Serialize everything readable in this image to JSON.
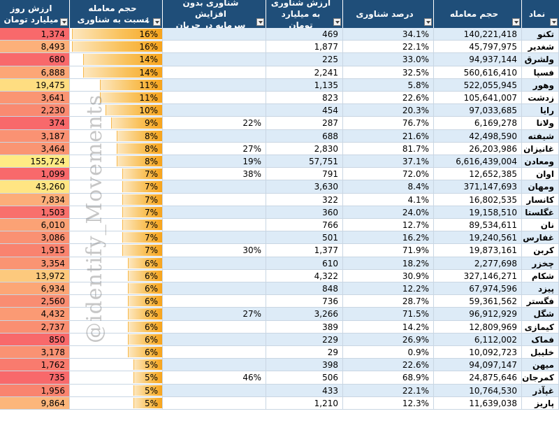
{
  "headers": {
    "symbol": "نماد",
    "volume": "حجم معامله",
    "float_pct": "درصد شناوری",
    "float_value": "ارزش شناوری\nبه میلیارد تومان",
    "float_no_capital": "شناوری بدون افزایش\nسرمایه در جریان",
    "volume_ratio": "حجم معامله\nنسبت به شناوری",
    "daily_value": "ارزش روز\nمیلیارد تومان"
  },
  "watermark": "@identify_Movements",
  "rows": [
    {
      "symbol": "تکنو",
      "volume": "140,221,418",
      "float_pct": "34.1%",
      "float_value": "469",
      "float_nc": "",
      "ratio": "16%",
      "ratio_num": 16,
      "daily": "1,374",
      "daily_color": "#f8696b"
    },
    {
      "symbol": "شغدیر",
      "volume": "45,797,975",
      "float_pct": "22.1%",
      "float_value": "1,877",
      "float_nc": "",
      "ratio": "16%",
      "ratio_num": 16,
      "daily": "8,493",
      "daily_color": "#fcb07a"
    },
    {
      "symbol": "ولشرق",
      "volume": "94,937,144",
      "float_pct": "33.0%",
      "float_value": "225",
      "float_nc": "",
      "ratio": "14%",
      "ratio_num": 14,
      "daily": "680",
      "daily_color": "#f8696b"
    },
    {
      "symbol": "فسپا",
      "volume": "560,616,410",
      "float_pct": "32.5%",
      "float_value": "2,241",
      "float_nc": "",
      "ratio": "14%",
      "ratio_num": 14,
      "daily": "6,888",
      "daily_color": "#fca676"
    },
    {
      "symbol": "وهور",
      "volume": "522,055,945",
      "float_pct": "5.8%",
      "float_value": "1,135",
      "float_nc": "",
      "ratio": "11%",
      "ratio_num": 11,
      "daily": "19,475",
      "daily_color": "#fedd81"
    },
    {
      "symbol": "زدشت",
      "volume": "105,641,007",
      "float_pct": "22.6%",
      "float_value": "823",
      "float_nc": "",
      "ratio": "11%",
      "ratio_num": 11,
      "daily": "3,641",
      "daily_color": "#fa9573"
    },
    {
      "symbol": "رایا",
      "volume": "97,033,685",
      "float_pct": "20.3%",
      "float_value": "454",
      "float_nc": "",
      "ratio": "10%",
      "ratio_num": 10,
      "daily": "2,230",
      "daily_color": "#f98a71"
    },
    {
      "symbol": "ولانا",
      "volume": "6,169,278",
      "float_pct": "76.7%",
      "float_value": "287",
      "float_nc": "22%",
      "ratio": "9%",
      "ratio_num": 9,
      "daily": "374",
      "daily_color": "#f8696b"
    },
    {
      "symbol": "شیفته",
      "volume": "42,498,590",
      "float_pct": "21.6%",
      "float_value": "688",
      "float_nc": "",
      "ratio": "8%",
      "ratio_num": 8,
      "daily": "3,187",
      "daily_color": "#fa9273"
    },
    {
      "symbol": "غانیزان",
      "volume": "26,203,986",
      "float_pct": "81.7%",
      "float_value": "2,830",
      "float_nc": "27%",
      "ratio": "8%",
      "ratio_num": 8,
      "daily": "3,464",
      "daily_color": "#fa9573"
    },
    {
      "symbol": "ومعادن",
      "volume": "6,616,439,004",
      "float_pct": "37.1%",
      "float_value": "57,751",
      "float_nc": "19%",
      "ratio": "8%",
      "ratio_num": 8,
      "daily": "155,724",
      "daily_color": "#ffeb84"
    },
    {
      "symbol": "اوان",
      "volume": "12,652,385",
      "float_pct": "72.0%",
      "float_value": "791",
      "float_nc": "38%",
      "ratio": "7%",
      "ratio_num": 7,
      "daily": "1,099",
      "daily_color": "#f8696b"
    },
    {
      "symbol": "ومهان",
      "volume": "371,147,693",
      "float_pct": "8.4%",
      "float_value": "3,630",
      "float_nc": "",
      "ratio": "7%",
      "ratio_num": 7,
      "daily": "43,260",
      "daily_color": "#ffe583"
    },
    {
      "symbol": "کانسار",
      "volume": "16,802,535",
      "float_pct": "4.1%",
      "float_value": "322",
      "float_nc": "",
      "ratio": "7%",
      "ratio_num": 7,
      "daily": "7,834",
      "daily_color": "#fcad79"
    },
    {
      "symbol": "غگلستا",
      "volume": "19,158,510",
      "float_pct": "24.0%",
      "float_value": "360",
      "float_nc": "",
      "ratio": "7%",
      "ratio_num": 7,
      "daily": "1,503",
      "daily_color": "#f8706c"
    },
    {
      "symbol": "نان",
      "volume": "89,534,611",
      "float_pct": "12.7%",
      "float_value": "766",
      "float_nc": "",
      "ratio": "7%",
      "ratio_num": 7,
      "daily": "6,010",
      "daily_color": "#fba275"
    },
    {
      "symbol": "غفارس",
      "volume": "19,240,561",
      "float_pct": "16.2%",
      "float_value": "501",
      "float_nc": "",
      "ratio": "7%",
      "ratio_num": 7,
      "daily": "3,086",
      "daily_color": "#fa9173"
    },
    {
      "symbol": "کربن",
      "volume": "19,873,161",
      "float_pct": "71.9%",
      "float_value": "1,377",
      "float_nc": "30%",
      "ratio": "7%",
      "ratio_num": 7,
      "daily": "1,915",
      "daily_color": "#f9836f"
    },
    {
      "symbol": "چخزر",
      "volume": "2,277,698",
      "float_pct": "18.2%",
      "float_value": "610",
      "float_nc": "",
      "ratio": "6%",
      "ratio_num": 6,
      "daily": "3,354",
      "daily_color": "#fa9473"
    },
    {
      "symbol": "شکام",
      "volume": "327,146,271",
      "float_pct": "30.9%",
      "float_value": "4,322",
      "float_nc": "",
      "ratio": "6%",
      "ratio_num": 6,
      "daily": "13,972",
      "daily_color": "#fdc97d"
    },
    {
      "symbol": "پیزد",
      "volume": "67,974,596",
      "float_pct": "12.2%",
      "float_value": "848",
      "float_nc": "",
      "ratio": "6%",
      "ratio_num": 6,
      "daily": "6,934",
      "daily_color": "#fca676"
    },
    {
      "symbol": "فگستر",
      "volume": "59,361,562",
      "float_pct": "28.7%",
      "float_value": "736",
      "float_nc": "",
      "ratio": "6%",
      "ratio_num": 6,
      "daily": "2,560",
      "daily_color": "#f98d72"
    },
    {
      "symbol": "شگل",
      "volume": "96,912,929",
      "float_pct": "71.5%",
      "float_value": "3,266",
      "float_nc": "27%",
      "ratio": "6%",
      "ratio_num": 6,
      "daily": "4,432",
      "daily_color": "#fb9a74"
    },
    {
      "symbol": "کیمازی",
      "volume": "12,809,969",
      "float_pct": "14.2%",
      "float_value": "389",
      "float_nc": "",
      "ratio": "6%",
      "ratio_num": 6,
      "daily": "2,737",
      "daily_color": "#fa8f72"
    },
    {
      "symbol": "فماک",
      "volume": "6,112,002",
      "float_pct": "26.9%",
      "float_value": "229",
      "float_nc": "",
      "ratio": "6%",
      "ratio_num": 6,
      "daily": "850",
      "daily_color": "#f8696b"
    },
    {
      "symbol": "خلیبل",
      "volume": "10,092,723",
      "float_pct": "0.9%",
      "float_value": "29",
      "float_nc": "",
      "ratio": "6%",
      "ratio_num": 6,
      "daily": "3,178",
      "daily_color": "#fa9273"
    },
    {
      "symbol": "میهن",
      "volume": "94,097,147",
      "float_pct": "22.6%",
      "float_value": "398",
      "float_nc": "",
      "ratio": "5%",
      "ratio_num": 5,
      "daily": "1,762",
      "daily_color": "#f97b6e"
    },
    {
      "symbol": "کمرجان",
      "volume": "24,875,646",
      "float_pct": "68.9%",
      "float_value": "506",
      "float_nc": "46%",
      "ratio": "5%",
      "ratio_num": 5,
      "daily": "735",
      "daily_color": "#f8696b"
    },
    {
      "symbol": "غپآذر",
      "volume": "10,764,530",
      "float_pct": "22.1%",
      "float_value": "433",
      "float_nc": "",
      "ratio": "5%",
      "ratio_num": 5,
      "daily": "1,956",
      "daily_color": "#f9846f"
    },
    {
      "symbol": "پاریز",
      "volume": "11,639,038",
      "float_pct": "12.3%",
      "float_value": "1,210",
      "float_nc": "",
      "ratio": "5%",
      "ratio_num": 5,
      "daily": "9,864",
      "daily_color": "#fcb67b"
    }
  ]
}
